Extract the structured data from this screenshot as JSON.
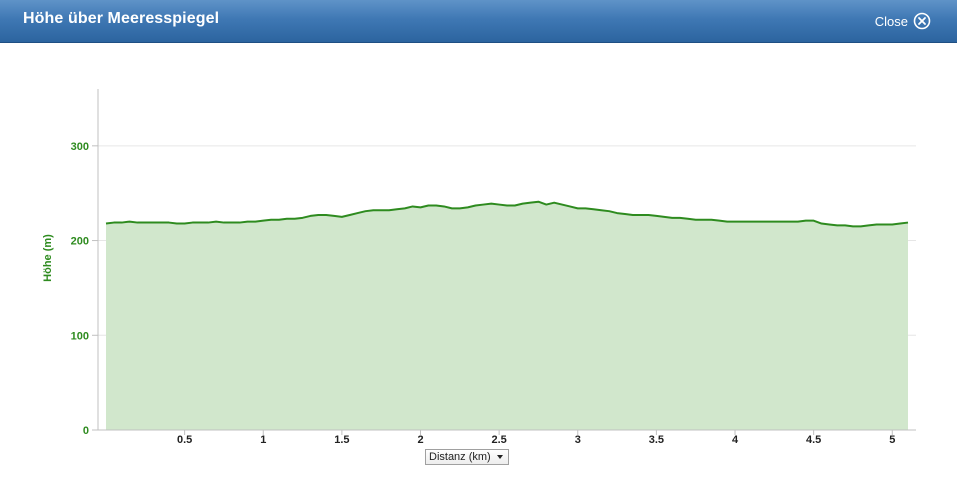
{
  "window": {
    "title": "Höhe über Meeresspiegel",
    "close_label": "Close",
    "header_color": "#3f78b4"
  },
  "xaxis_select": {
    "selected": "Distanz (km)"
  },
  "chart_data": {
    "type": "area",
    "xlabel": "Distanz (km)",
    "ylabel": "Höhe (m)",
    "xlim": [
      0,
      5.1
    ],
    "ylim": [
      0,
      360
    ],
    "yticks": [
      0,
      100,
      200,
      300
    ],
    "xticks": [
      0.5,
      1,
      1.5,
      2,
      2.5,
      3,
      3.5,
      4,
      4.5,
      5
    ],
    "grid": true,
    "line_color": "#2e8b1f",
    "fill_color": "#d1e7cc",
    "series": [
      {
        "x": [
          0,
          0.05,
          0.1,
          0.15,
          0.2,
          0.25,
          0.3,
          0.35,
          0.4,
          0.45,
          0.5,
          0.55,
          0.6,
          0.65,
          0.7,
          0.75,
          0.8,
          0.85,
          0.9,
          0.95,
          1.0,
          1.05,
          1.1,
          1.15,
          1.2,
          1.25,
          1.3,
          1.35,
          1.4,
          1.45,
          1.5,
          1.55,
          1.6,
          1.65,
          1.7,
          1.75,
          1.8,
          1.85,
          1.9,
          1.95,
          2.0,
          2.05,
          2.1,
          2.15,
          2.2,
          2.25,
          2.3,
          2.35,
          2.4,
          2.45,
          2.5,
          2.55,
          2.6,
          2.65,
          2.7,
          2.75,
          2.8,
          2.85,
          2.9,
          2.95,
          3.0,
          3.05,
          3.1,
          3.15,
          3.2,
          3.25,
          3.3,
          3.35,
          3.4,
          3.45,
          3.5,
          3.55,
          3.6,
          3.65,
          3.7,
          3.75,
          3.8,
          3.85,
          3.9,
          3.95,
          4.0,
          4.05,
          4.1,
          4.15,
          4.2,
          4.25,
          4.3,
          4.35,
          4.4,
          4.45,
          4.5,
          4.55,
          4.6,
          4.65,
          4.7,
          4.75,
          4.8,
          4.85,
          4.9,
          4.95,
          5.0,
          5.05,
          5.1
        ],
        "values": [
          218,
          219,
          219,
          220,
          219,
          219,
          219,
          219,
          219,
          218,
          218,
          219,
          219,
          219,
          220,
          219,
          219,
          219,
          220,
          220,
          221,
          222,
          222,
          223,
          223,
          224,
          226,
          227,
          227,
          226,
          225,
          227,
          229,
          231,
          232,
          232,
          232,
          233,
          234,
          236,
          235,
          237,
          237,
          236,
          234,
          234,
          235,
          237,
          238,
          239,
          238,
          237,
          237,
          239,
          240,
          241,
          238,
          240,
          238,
          236,
          234,
          234,
          233,
          232,
          231,
          229,
          228,
          227,
          227,
          227,
          226,
          225,
          224,
          224,
          223,
          222,
          222,
          222,
          221,
          220,
          220,
          220,
          220,
          220,
          220,
          220,
          220,
          220,
          220,
          221,
          221,
          218,
          217,
          216,
          216,
          215,
          215,
          216,
          217,
          217,
          217,
          218,
          219
        ]
      }
    ]
  }
}
